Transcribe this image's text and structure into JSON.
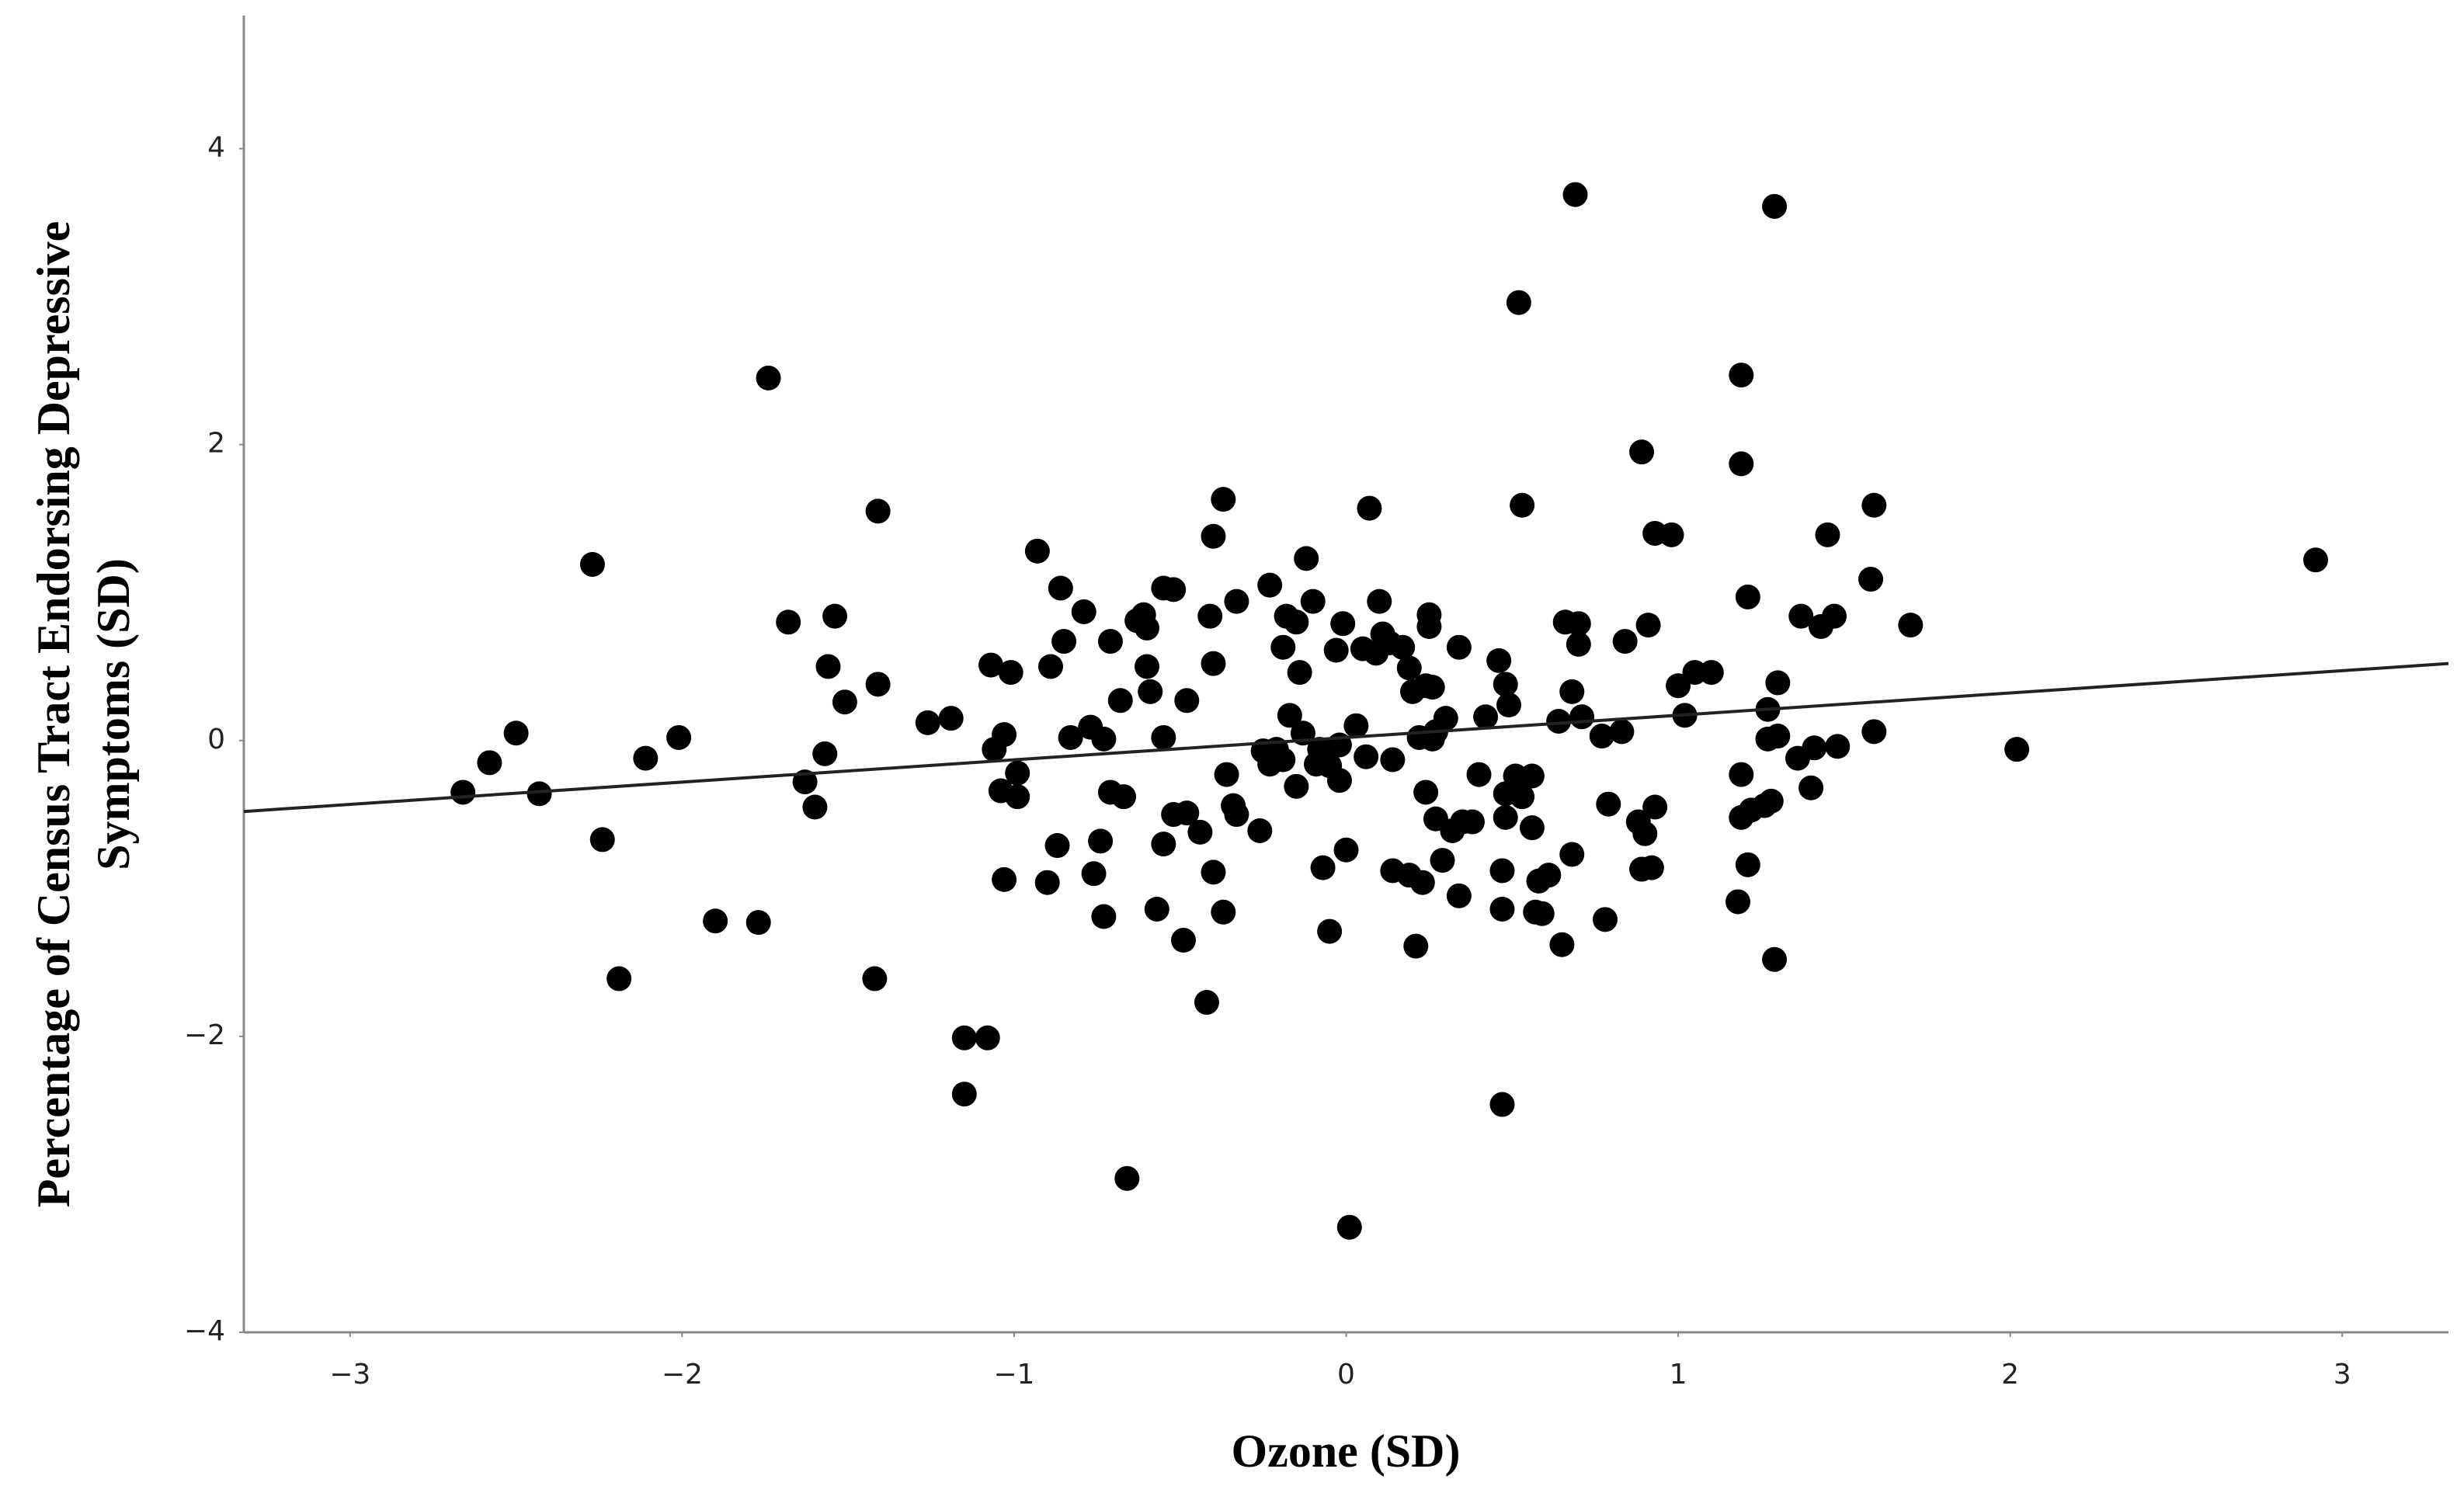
{
  "chart_data": {
    "type": "scatter",
    "xlabel": "Ozone (SD)",
    "ylabel": [
      "Percentage of Census Tract Endorsing Depressive",
      "Symptoms (SD)"
    ],
    "color": "#000000",
    "xlim": [
      -3.32,
      3.32
    ],
    "ylim": [
      -4,
      4.9
    ],
    "xticks": [
      {
        "value": -3,
        "label": "−3"
      },
      {
        "value": -2,
        "label": "−2"
      },
      {
        "value": -1,
        "label": "−1"
      },
      0,
      1,
      2,
      3
    ],
    "yticks": [
      {
        "value": -4,
        "label": "−4"
      },
      {
        "value": -2,
        "label": "−2"
      },
      0,
      2,
      4
    ],
    "x": [
      -2.66,
      -2.58,
      -2.5,
      -2.43,
      -2.27,
      -2.24,
      -2.19,
      -2.11,
      -2.01,
      -1.9,
      -1.77,
      -1.74,
      -1.68,
      -1.63,
      -1.6,
      -1.57,
      -1.56,
      -1.54,
      -1.51,
      -1.42,
      -1.41,
      -1.41,
      -1.26,
      -1.19,
      -1.15,
      -1.15,
      -1.08,
      -1.07,
      -1.06,
      -1.04,
      -1.03,
      -1.03,
      -1.01,
      -0.99,
      -0.99,
      -0.93,
      -0.9,
      -0.89,
      -0.87,
      -0.86,
      -0.85,
      -0.83,
      -0.79,
      -0.77,
      -0.76,
      -0.74,
      -0.73,
      -0.73,
      -0.71,
      -0.71,
      -0.68,
      -0.67,
      -0.66,
      -0.63,
      -0.61,
      -0.6,
      -0.6,
      -0.59,
      -0.57,
      -0.55,
      -0.55,
      -0.55,
      -0.52,
      -0.52,
      -0.49,
      -0.48,
      -0.48,
      -0.44,
      -0.42,
      -0.41,
      -0.4,
      -0.4,
      -0.4,
      -0.37,
      -0.37,
      -0.36,
      -0.34,
      -0.33,
      -0.33,
      -0.26,
      -0.25,
      -0.23,
      -0.23,
      -0.21,
      -0.19,
      -0.19,
      -0.18,
      -0.17,
      -0.15,
      -0.15,
      -0.14,
      -0.13,
      -0.12,
      -0.1,
      -0.09,
      -0.08,
      -0.07,
      -0.05,
      -0.05,
      -0.03,
      -0.02,
      -0.02,
      -0.01,
      0,
      0.01,
      0.03,
      0.05,
      0.06,
      0.07,
      0.09,
      0.1,
      0.11,
      0.13,
      0.14,
      0.14,
      0.17,
      0.19,
      0.19,
      0.2,
      0.21,
      0.22,
      0.23,
      0.24,
      0.24,
      0.25,
      0.25,
      0.26,
      0.26,
      0.27,
      0.27,
      0.29,
      0.3,
      0.32,
      0.34,
      0.34,
      0.35,
      0.38,
      0.4,
      0.42,
      0.46,
      0.47,
      0.47,
      0.47,
      0.48,
      0.48,
      0.48,
      0.49,
      0.51,
      0.52,
      0.53,
      0.53,
      0.56,
      0.56,
      0.57,
      0.58,
      0.59,
      0.61,
      0.64,
      0.65,
      0.66,
      0.68,
      0.68,
      0.69,
      0.7,
      0.7,
      0.71,
      0.77,
      0.78,
      0.79,
      0.83,
      0.84,
      0.88,
      0.89,
      0.89,
      0.9,
      0.91,
      0.92,
      0.93,
      0.93,
      0.98,
      1,
      1.02,
      1.05,
      1.1,
      1.18,
      1.19,
      1.19,
      1.19,
      1.19,
      1.21,
      1.21,
      1.22,
      1.26,
      1.27,
      1.27,
      1.28,
      1.29,
      1.29,
      1.3,
      1.3,
      1.36,
      1.37,
      1.4,
      1.41,
      1.43,
      1.45,
      1.47,
      1.48,
      1.58,
      1.59,
      1.59,
      1.7,
      2.02,
      2.92
    ],
    "y": [
      -0.35,
      -0.15,
      0.05,
      -0.36,
      1.19,
      -0.67,
      -1.61,
      -0.12,
      0.02,
      -1.22,
      -1.23,
      2.45,
      0.8,
      -0.28,
      -0.45,
      -0.09,
      0.5,
      0.84,
      0.26,
      -1.61,
      0.38,
      1.55,
      0.12,
      0.15,
      -2.01,
      -2.39,
      -2.01,
      0.51,
      -0.06,
      -0.34,
      0.04,
      -0.94,
      0.46,
      -0.22,
      -0.38,
      1.28,
      -0.96,
      0.5,
      -0.71,
      1.03,
      0.67,
      0.02,
      0.87,
      0.09,
      -0.9,
      -0.68,
      -1.19,
      0.01,
      0.67,
      -0.35,
      0.27,
      -0.38,
      -2.96,
      0.81,
      0.85,
      0.76,
      0.5,
      0.33,
      -1.14,
      -0.7,
      0.02,
      1.03,
      1.02,
      -0.5,
      -1.35,
      0.27,
      -0.49,
      -0.62,
      -1.77,
      0.84,
      0.52,
      1.38,
      -0.89,
      -1.16,
      1.63,
      -0.23,
      -0.44,
      0.94,
      -0.5,
      -0.61,
      -0.07,
      -0.16,
      1.05,
      -0.06,
      -0.13,
      0.63,
      0.84,
      0.17,
      -0.31,
      0.8,
      0.46,
      0.05,
      1.23,
      0.94,
      -0.16,
      -0.06,
      -0.86,
      -1.29,
      -0.17,
      0.61,
      -0.03,
      -0.27,
      0.79,
      -0.74,
      -3.29,
      0.1,
      0.62,
      -0.11,
      1.57,
      0.59,
      0.94,
      0.72,
      0.66,
      -0.13,
      -0.88,
      0.63,
      -0.91,
      0.49,
      0.33,
      -1.39,
      0.02,
      -0.96,
      0.37,
      -0.35,
      0.85,
      0.77,
      0.01,
      0.36,
      -0.53,
      0.06,
      -0.81,
      0.15,
      -0.61,
      0.63,
      -1.05,
      -0.55,
      -0.55,
      -0.23,
      0.16,
      0.54,
      -0.88,
      -2.46,
      -1.14,
      -0.36,
      0.38,
      -0.52,
      0.24,
      -0.24,
      2.96,
      1.59,
      -0.38,
      -0.59,
      -0.24,
      -1.16,
      -0.95,
      -1.17,
      -0.91,
      0.13,
      -1.38,
      0.8,
      0.33,
      -0.77,
      3.69,
      0.65,
      0.79,
      0.16,
      0.03,
      -1.21,
      -0.43,
      0.06,
      0.67,
      -0.55,
      1.95,
      -0.87,
      -0.63,
      0.78,
      -0.86,
      -0.45,
      1.4,
      1.39,
      0.37,
      0.17,
      0.46,
      0.46,
      -1.09,
      2.47,
      1.87,
      -0.23,
      -0.52,
      0.97,
      -0.84,
      -0.47,
      -0.44,
      0.21,
      0.01,
      -0.41,
      3.61,
      -1.48,
      0.39,
      0.03,
      -0.12,
      0.84,
      -0.32,
      -0.05,
      0.77,
      1.39,
      0.84,
      -0.04,
      1.09,
      1.59,
      0.06,
      0.78,
      -0.06,
      1.22
    ],
    "fit_line": {
      "x": [
        -3.32,
        3.32
      ],
      "y": [
        -0.48,
        0.52
      ]
    }
  }
}
